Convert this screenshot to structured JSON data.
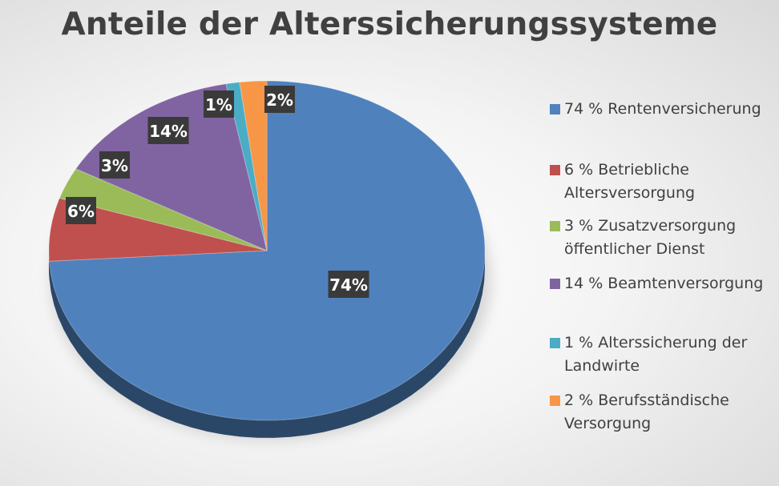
{
  "chart_data": {
    "type": "pie",
    "title": "Anteile der Alterssicherungssysteme",
    "slices": [
      {
        "value": 74,
        "label": "74%",
        "legend": "74 % Rentenversicherung",
        "color": "#4f81bd"
      },
      {
        "value": 6,
        "label": "6%",
        "legend": "6 % Betriebliche Altersversorgung",
        "color": "#c0504d"
      },
      {
        "value": 3,
        "label": "3%",
        "legend": "3 % Zusatzversorgung öffentlicher Dienst",
        "color": "#9bbb59"
      },
      {
        "value": 14,
        "label": "14%",
        "legend": "14 % Beamtenversorgung",
        "color": "#8064a2"
      },
      {
        "value": 1,
        "label": "1%",
        "legend": "1 % Alterssicherung der Landwirte",
        "color": "#4bacc6"
      },
      {
        "value": 2,
        "label": "2%",
        "legend": "2 % Berufsständische Versorgung",
        "color": "#f79646"
      }
    ],
    "legend_position": "right",
    "style": "3d"
  }
}
